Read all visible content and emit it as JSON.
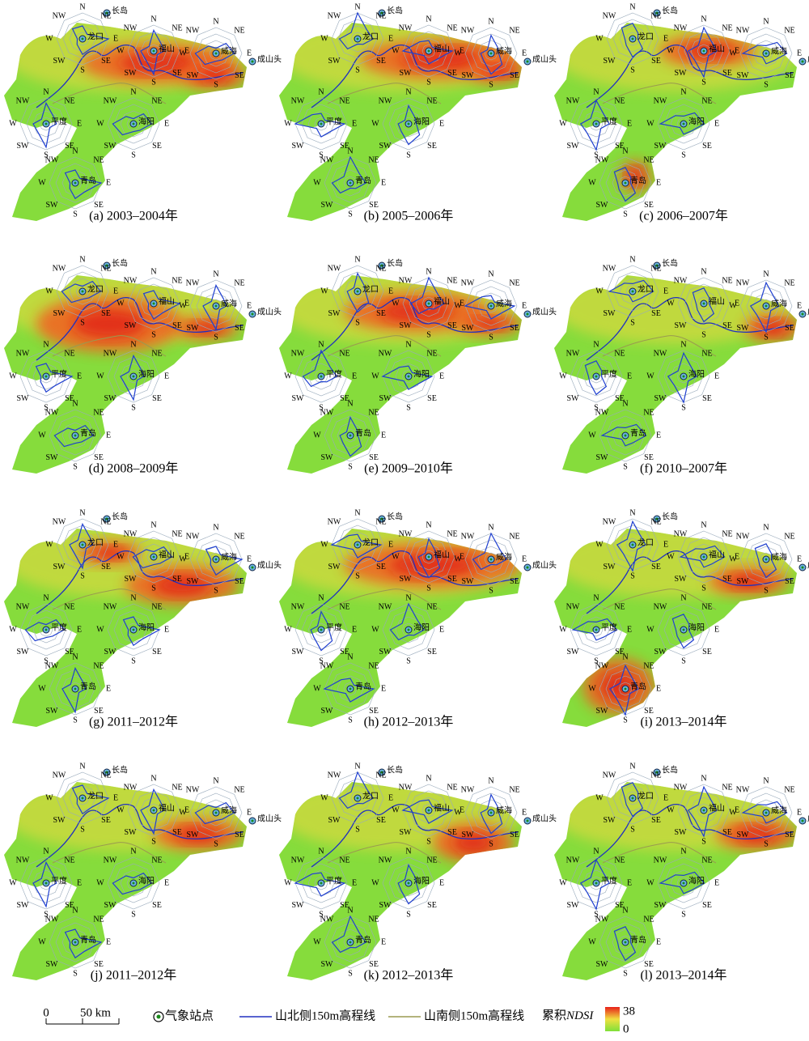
{
  "panels": [
    {
      "caption": "(a) 2003–2004年"
    },
    {
      "caption": "(b) 2005–2006年"
    },
    {
      "caption": "(c) 2006–2007年"
    },
    {
      "caption": "(d) 2008–2009年"
    },
    {
      "caption": "(e) 2009–2010年"
    },
    {
      "caption": "(f) 2010–2007年"
    },
    {
      "caption": "(g) 2011–2012年"
    },
    {
      "caption": "(h) 2012–2013年"
    },
    {
      "caption": "(i) 2013–2014年"
    },
    {
      "caption": "(j) 2011–2012年"
    },
    {
      "caption": "(k) 2012–2013年"
    },
    {
      "caption": "(l) 2013–2014年"
    }
  ],
  "stations": [
    "长岛",
    "龙口",
    "福山",
    "威海",
    "成山头",
    "平度",
    "海阳",
    "青岛"
  ],
  "directions": [
    "N",
    "NE",
    "E",
    "SE",
    "S",
    "SW",
    "W",
    "NW"
  ],
  "legend": {
    "scale_start": "0",
    "scale_end": "50 km",
    "station": "气象站点",
    "north_line": "山北侧150m高程线",
    "south_line": "山南侧150m高程线",
    "ndsi_prefix": "累积",
    "ndsi_name": "NDSI",
    "ndsi_max": "38",
    "ndsi_min": "0"
  }
}
